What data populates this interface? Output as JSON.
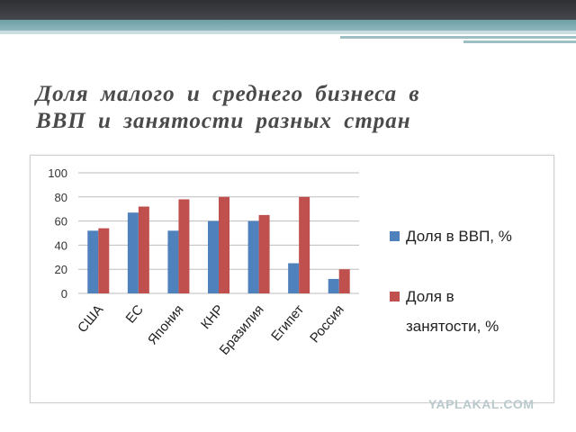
{
  "slide": {
    "title_line1": "Доля  малого  и  среднего  бизнеса в",
    "title_line2": "ВВП  и  занятости  разных  стран",
    "watermark": "YAPLAKAL.COM"
  },
  "colors": {
    "header_dark": "#393b3f",
    "header_teal": "#7aa8ae",
    "series_gdp": "#4f81bd",
    "series_employment": "#c0504d",
    "title_text": "#4a4a4a"
  },
  "chart_data": {
    "type": "bar",
    "title": "",
    "xlabel": "",
    "ylabel": "",
    "categories": [
      "США",
      "ЕС",
      "Япония",
      "КНР",
      "Бразилия",
      "Египет",
      "Россия"
    ],
    "series": [
      {
        "name": "Доля в ВВП, %",
        "values": [
          52,
          67,
          52,
          60,
          60,
          25,
          12
        ]
      },
      {
        "name": "Доля в занятости, %",
        "values": [
          54,
          72,
          78,
          80,
          65,
          80,
          20
        ]
      }
    ],
    "ylim": [
      0,
      100
    ],
    "yticks": [
      0,
      20,
      40,
      60,
      80,
      100
    ],
    "grid": true,
    "legend": "right"
  }
}
